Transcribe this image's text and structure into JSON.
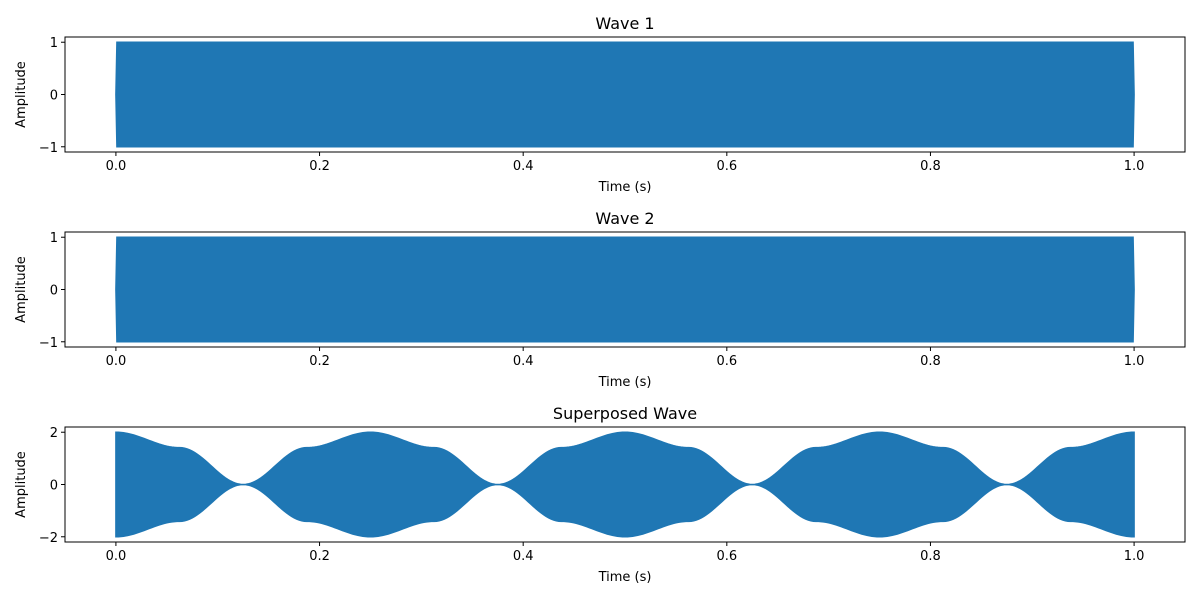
{
  "chart_data": [
    {
      "type": "area",
      "title": "Wave 1",
      "xlabel": "Time (s)",
      "ylabel": "Amplitude",
      "xlim": [
        -0.05,
        1.05
      ],
      "ylim": [
        -1.1,
        1.1
      ],
      "xticks": [
        0.0,
        0.2,
        0.4,
        0.6,
        0.8,
        1.0
      ],
      "xtick_labels": [
        "0.0",
        "0.2",
        "0.4",
        "0.6",
        "0.8",
        "1.0"
      ],
      "yticks": [
        -1,
        0,
        1
      ],
      "ytick_labels": [
        "−1",
        "0",
        "1"
      ],
      "color": "#1f77b4",
      "series": [
        {
          "envelope": {
            "x": [
              0.0,
              0.001,
              0.999,
              1.0
            ],
            "upper": [
              0,
              1,
              1,
              0
            ],
            "lower": [
              0,
              -1,
              -1,
              0
            ]
          }
        }
      ]
    },
    {
      "type": "area",
      "title": "Wave 2",
      "xlabel": "Time (s)",
      "ylabel": "Amplitude",
      "xlim": [
        -0.05,
        1.05
      ],
      "ylim": [
        -1.1,
        1.1
      ],
      "xticks": [
        0.0,
        0.2,
        0.4,
        0.6,
        0.8,
        1.0
      ],
      "xtick_labels": [
        "0.0",
        "0.2",
        "0.4",
        "0.6",
        "0.8",
        "1.0"
      ],
      "yticks": [
        -1,
        0,
        1
      ],
      "ytick_labels": [
        "−1",
        "0",
        "1"
      ],
      "color": "#1f77b4",
      "series": [
        {
          "envelope": {
            "x": [
              0.0,
              0.001,
              0.999,
              1.0
            ],
            "upper": [
              0,
              1,
              1,
              0
            ],
            "lower": [
              0,
              -1,
              -1,
              0
            ]
          }
        }
      ]
    },
    {
      "type": "area",
      "title": "Superposed Wave",
      "xlabel": "Time (s)",
      "ylabel": "Amplitude",
      "xlim": [
        -0.05,
        1.05
      ],
      "ylim": [
        -2.2,
        2.2
      ],
      "xticks": [
        0.0,
        0.2,
        0.4,
        0.6,
        0.8,
        1.0
      ],
      "xtick_labels": [
        "0.0",
        "0.2",
        "0.4",
        "0.6",
        "0.8",
        "1.0"
      ],
      "yticks": [
        -2,
        0,
        2
      ],
      "ytick_labels": [
        "−2",
        "0",
        "2"
      ],
      "color": "#1f77b4",
      "series": [
        {
          "envelope": {
            "x": [
              0.0,
              0.0625,
              0.125,
              0.1875,
              0.25,
              0.3125,
              0.375,
              0.4375,
              0.5,
              0.5625,
              0.625,
              0.6875,
              0.75,
              0.8125,
              0.875,
              0.9375,
              1.0
            ],
            "upper": [
              2.0,
              1.41,
              0.0,
              1.41,
              2.0,
              1.41,
              0.0,
              1.41,
              2.0,
              1.41,
              0.0,
              1.41,
              2.0,
              1.41,
              0.0,
              1.41,
              2.0
            ],
            "lower": [
              -2.0,
              -1.41,
              0.0,
              -1.41,
              -2.0,
              -1.41,
              0.0,
              -1.41,
              -2.0,
              -1.41,
              0.0,
              -1.41,
              -2.0,
              -1.41,
              0.0,
              -1.41,
              -2.0
            ]
          }
        }
      ]
    }
  ]
}
